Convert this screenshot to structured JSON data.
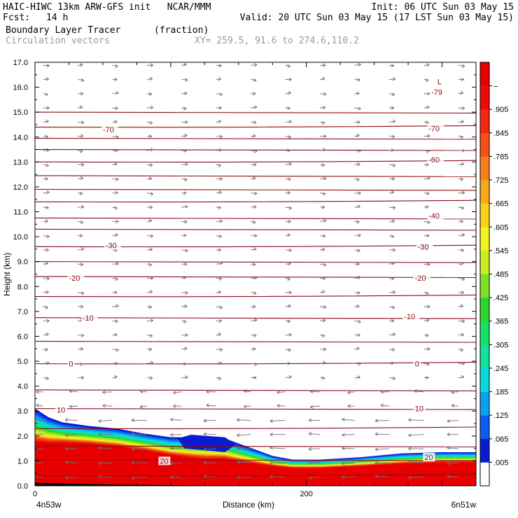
{
  "header": {
    "line1_left": "HAIC-HIWC 13km ARW-GFS init   NCAR/MMM",
    "line1_right": "Init: 06 UTC Sun 03 May 15",
    "fcst_label": "Fcst:",
    "fcst_value": "14 h",
    "valid": "Valid: 20 UTC Sun 03 May 15 (17 LST Sun 03 May 15)",
    "field_name": "Boundary Layer Tracer",
    "field_units": "(fraction)",
    "vector_label": "Circulation vectors",
    "xy_text": "XY= 259.5, 91.6 to 274.6,110.2"
  },
  "chart_data": {
    "type": "heatmap",
    "title": "Boundary Layer Tracer",
    "units": "(fraction)",
    "ylabel": "Height (km)",
    "xlabel": "Distance (km)",
    "ylim": [
      0,
      17
    ],
    "xlim": [
      0,
      325
    ],
    "y_ticks": [
      "0.0",
      "1.0",
      "2.0",
      "3.0",
      "4.0",
      "5.0",
      "6.0",
      "7.0",
      "8.0",
      "9.0",
      "10.0",
      "11.0",
      "12.0",
      "13.0",
      "14.0",
      "15.0",
      "16.0",
      "17.0"
    ],
    "x_ticks": [
      {
        "value": 0,
        "label": "0"
      },
      {
        "value": 200,
        "label": "200"
      }
    ],
    "x_endpoints": {
      "left": "4n53w",
      "right": "6n51w"
    },
    "colorbar": {
      "labels": [
        ".005",
        ".065",
        ".125",
        ".185",
        ".245",
        ".305",
        ".365",
        ".425",
        ".485",
        ".545",
        ".605",
        ".665",
        ".725",
        ".785",
        ".845",
        ".905",
        "–"
      ],
      "colors": [
        "#ffffff",
        "#0a1cd2",
        "#0b5cee",
        "#0aa0f2",
        "#0ad8dc",
        "#14e0a0",
        "#16e066",
        "#2cd62c",
        "#7ee024",
        "#c8ee22",
        "#f4f222",
        "#f8d21e",
        "#f8a81c",
        "#f87e1a",
        "#f45216",
        "#f02a12",
        "#ee0a0a",
        "#e80000"
      ]
    },
    "temperature_contour_labels": [
      "-79",
      "-70",
      "-70",
      "-60",
      "-40",
      "-30",
      "-30",
      "-20",
      "-20",
      "-10",
      "-10",
      "0",
      "0",
      "10",
      "10",
      "20",
      "20"
    ],
    "low_marker": "L",
    "grid": false,
    "legend": "right"
  }
}
